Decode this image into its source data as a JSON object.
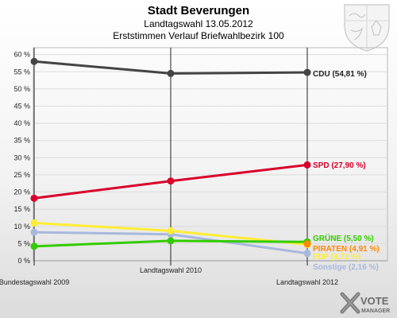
{
  "header": {
    "title": "Stadt Beverungen",
    "subtitle1": "Landtagswahl 13.05.2012",
    "subtitle2": "Erststimmen Verlauf Briefwahlbezirk 100"
  },
  "branding": {
    "logo_text_1": "VOTE",
    "logo_text_2": "MANAGER",
    "coat_of_arms": "coat-of-arms-icon"
  },
  "chart_data": {
    "type": "line",
    "title": "Stadt Beverungen",
    "subtitle": "Landtagswahl 13.05.2012 — Erststimmen Verlauf Briefwahlbezirk 100",
    "categories": [
      "Bundestagswahl 2009",
      "Landtagswahl 2010",
      "Landtagswahl 2012"
    ],
    "ylim": [
      0,
      62
    ],
    "yticks": [
      "0 %",
      "5 %",
      "10 %",
      "15 %",
      "20 %",
      "25 %",
      "30 %",
      "35 %",
      "40 %",
      "45 %",
      "50 %",
      "55 %",
      "60 %"
    ],
    "ytick_values": [
      0,
      5,
      10,
      15,
      20,
      25,
      30,
      35,
      40,
      45,
      50,
      55,
      60
    ],
    "grid": true,
    "series": [
      {
        "name": "CDU",
        "label": "CDU (54,81 %)",
        "color": "#444444",
        "values": [
          58.0,
          54.5,
          54.81
        ]
      },
      {
        "name": "SPD",
        "label": "SPD (27,90 %)",
        "color": "#d8002a",
        "values": [
          18.2,
          23.2,
          27.9
        ]
      },
      {
        "name": "GRÜNE",
        "label": "GRÜNE (5,50 %)",
        "color": "#33cc00",
        "values": [
          4.2,
          5.8,
          5.5
        ]
      },
      {
        "name": "PIRATEN",
        "label": "PIRATEN (4,91 %)",
        "color": "#ff8800",
        "values": [
          null,
          null,
          4.91
        ]
      },
      {
        "name": "FDP",
        "label": "FDP (4,72 %)",
        "color": "#ffee33",
        "values": [
          11.0,
          8.7,
          4.72
        ]
      },
      {
        "name": "Sonstige",
        "label": "Sonstige (2,16 %)",
        "color": "#a8b8dd",
        "values": [
          8.3,
          7.7,
          2.16
        ]
      }
    ]
  }
}
